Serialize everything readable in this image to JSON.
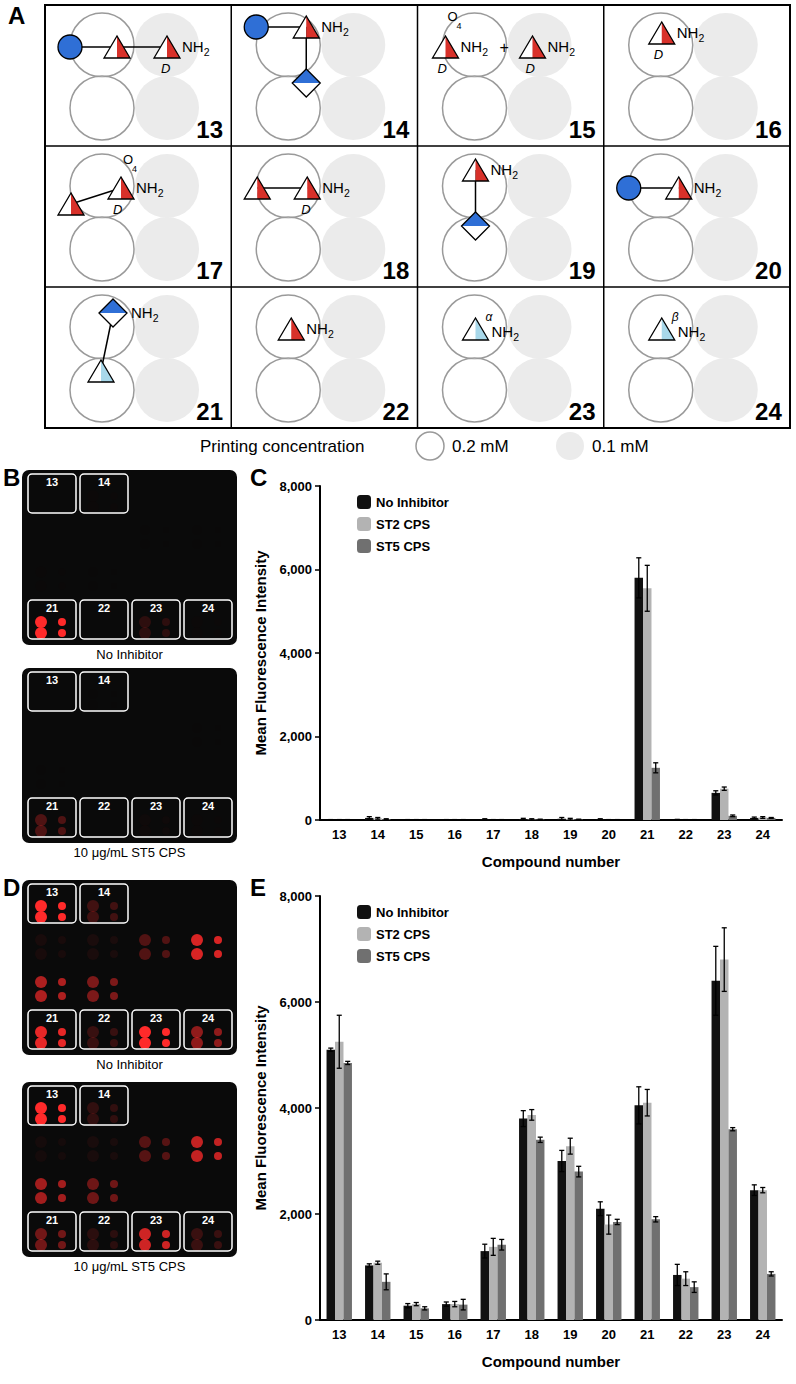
{
  "panel_labels": [
    "A",
    "B",
    "C",
    "D",
    "E"
  ],
  "glycan_grid": {
    "cells": [
      {
        "number": "13",
        "texts": [
          "D",
          "NH2"
        ]
      },
      {
        "number": "14",
        "texts": [
          "NH2"
        ]
      },
      {
        "number": "15",
        "texts": [
          "O",
          "4",
          "D",
          "NH2",
          "+",
          "D",
          "NH2"
        ]
      },
      {
        "number": "16",
        "texts": [
          "D",
          "NH2"
        ]
      },
      {
        "number": "17",
        "texts": [
          "O",
          "4",
          "D",
          "NH2"
        ]
      },
      {
        "number": "18",
        "texts": [
          "D",
          "NH2"
        ]
      },
      {
        "number": "19",
        "texts": [
          "NH2"
        ]
      },
      {
        "number": "20",
        "texts": [
          "NH2"
        ]
      },
      {
        "number": "21",
        "texts": [
          "NH2"
        ]
      },
      {
        "number": "22",
        "texts": [
          "NH2"
        ]
      },
      {
        "number": "23",
        "texts": [
          "α",
          "NH2"
        ]
      },
      {
        "number": "24",
        "texts": [
          "β",
          "NH2"
        ]
      }
    ],
    "legend": {
      "title": "Printing concentration",
      "items": [
        "0.2 mM",
        "0.1 mM"
      ]
    }
  },
  "array_images": [
    [
      {
        "caption": "No Inhibitor",
        "boxes": [
          "13",
          "14",
          "21",
          "22",
          "23",
          "24"
        ]
      },
      {
        "caption": "10 μg/mL ST5 CPS",
        "boxes": [
          "13",
          "14",
          "21",
          "22",
          "23",
          "24"
        ]
      }
    ],
    [
      {
        "caption": "No Inhibitor",
        "boxes": [
          "13",
          "14",
          "21",
          "22",
          "23",
          "24"
        ]
      },
      {
        "caption": "10 μg/mL ST5 CPS",
        "boxes": [
          "13",
          "14",
          "21",
          "22",
          "23",
          "24"
        ]
      }
    ]
  ],
  "chart_data": [
    {
      "type": "bar",
      "x_label": "Compound number",
      "y_label": "Mean Fluorescence Intensity",
      "categories": [
        "13",
        "14",
        "15",
        "16",
        "17",
        "18",
        "19",
        "20",
        "21",
        "22",
        "23",
        "24"
      ],
      "series": [
        {
          "name": "No Inhibitor",
          "color": "#111111",
          "values": [
            0,
            50,
            0,
            0,
            10,
            20,
            30,
            10,
            5800,
            0,
            650,
            50
          ],
          "errors": [
            10,
            30,
            10,
            10,
            20,
            20,
            30,
            20,
            480,
            15,
            50,
            20
          ]
        },
        {
          "name": "ST2 CPS",
          "color": "#b3b3b3",
          "values": [
            0,
            40,
            0,
            0,
            0,
            10,
            20,
            0,
            5550,
            0,
            750,
            60
          ],
          "errors": [
            10,
            20,
            10,
            10,
            10,
            20,
            20,
            10,
            550,
            10,
            40,
            20
          ]
        },
        {
          "name": "ST5 CPS",
          "color": "#707070",
          "values": [
            0,
            20,
            0,
            0,
            0,
            10,
            10,
            0,
            1250,
            0,
            100,
            50
          ],
          "errors": [
            10,
            10,
            10,
            10,
            10,
            10,
            10,
            10,
            120,
            10,
            20,
            10
          ]
        }
      ],
      "ylim": [
        0,
        8000
      ],
      "yticks": [
        0,
        2000,
        4000,
        6000,
        8000
      ],
      "grid": false,
      "legend": "top-left"
    },
    {
      "type": "bar",
      "x_label": "Compound number",
      "y_label": "Mean Fluorescence Intensity",
      "categories": [
        "13",
        "14",
        "15",
        "16",
        "17",
        "18",
        "19",
        "20",
        "21",
        "22",
        "23",
        "24"
      ],
      "series": [
        {
          "name": "No Inhibitor",
          "color": "#111111",
          "values": [
            5100,
            1030,
            270,
            300,
            1300,
            3800,
            3000,
            2100,
            4050,
            850,
            6400,
            2450
          ],
          "errors": [
            30,
            30,
            40,
            40,
            130,
            150,
            200,
            130,
            350,
            200,
            650,
            100
          ]
        },
        {
          "name": "ST2 CPS",
          "color": "#b3b3b3",
          "values": [
            5250,
            1080,
            300,
            300,
            1380,
            3870,
            3280,
            1800,
            4100,
            780,
            6800,
            2450
          ],
          "errors": [
            500,
            30,
            30,
            50,
            160,
            100,
            150,
            180,
            250,
            130,
            600,
            50
          ]
        },
        {
          "name": "ST5 CPS",
          "color": "#707070",
          "values": [
            4850,
            720,
            220,
            290,
            1420,
            3400,
            2800,
            1850,
            1900,
            620,
            3600,
            870
          ],
          "errors": [
            30,
            150,
            30,
            100,
            100,
            50,
            100,
            50,
            50,
            100,
            30,
            40
          ]
        }
      ],
      "ylim": [
        0,
        8000
      ],
      "yticks": [
        0,
        2000,
        4000,
        6000,
        8000
      ],
      "grid": false,
      "legend": "top-left"
    }
  ]
}
